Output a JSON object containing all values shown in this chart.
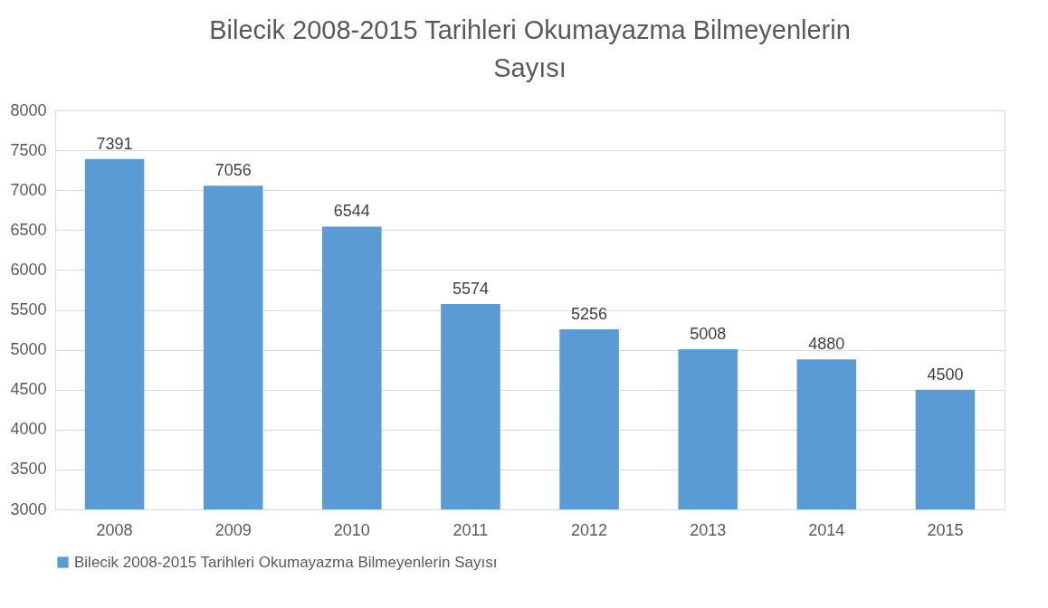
{
  "chart_data": {
    "type": "bar",
    "title": "Bilecik 2008-2015 Tarihleri Okumayazma Bilmeyenlerin Sayısı",
    "categories": [
      "2008",
      "2009",
      "2010",
      "2011",
      "2012",
      "2013",
      "2014",
      "2015"
    ],
    "series": [
      {
        "name": "Bilecik 2008-2015 Tarihleri Okumayazma Bilmeyenlerin Sayısı",
        "color": "#5b9bd5",
        "values": [
          7391,
          7056,
          6544,
          5574,
          5256,
          5008,
          4880,
          4500
        ]
      }
    ],
    "ylim": [
      3000,
      8000
    ],
    "yticks": [
      3000,
      3500,
      4000,
      4500,
      5000,
      5500,
      6000,
      6500,
      7000,
      7500,
      8000
    ],
    "grid": "y",
    "legend": "bottom",
    "data_labels": true
  }
}
